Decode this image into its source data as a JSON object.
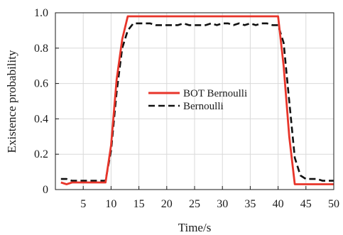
{
  "chart_data": {
    "type": "line",
    "title": "",
    "xlabel": "Time/s",
    "ylabel": "Existence probability",
    "xlim": [
      0,
      50
    ],
    "ylim": [
      0,
      1.0
    ],
    "x_ticks": [
      5,
      10,
      15,
      20,
      25,
      30,
      35,
      40,
      45,
      50
    ],
    "x_tick_labels": [
      "5",
      "10",
      "15",
      "20",
      "25",
      "30",
      "35",
      "40",
      "45",
      "50"
    ],
    "y_ticks": [
      0,
      0.2,
      0.4,
      0.6,
      0.8,
      1.0
    ],
    "y_tick_labels": [
      "0",
      "0.2",
      "0.4",
      "0.6",
      "0.8",
      "1.0"
    ],
    "grid": true,
    "legend_position": "center",
    "x": [
      1,
      2,
      3,
      4,
      5,
      6,
      7,
      8,
      9,
      10,
      11,
      12,
      13,
      14,
      15,
      16,
      17,
      18,
      19,
      20,
      21,
      22,
      23,
      24,
      25,
      26,
      27,
      28,
      29,
      30,
      31,
      32,
      33,
      34,
      35,
      36,
      37,
      38,
      39,
      40,
      41,
      42,
      43,
      44,
      45,
      46,
      47,
      48,
      49,
      50
    ],
    "series": [
      {
        "name": "BOT Bernoulli",
        "color": "#e8352a",
        "style": "solid",
        "values": [
          0.04,
          0.03,
          0.04,
          0.04,
          0.04,
          0.04,
          0.04,
          0.04,
          0.04,
          0.25,
          0.62,
          0.85,
          0.98,
          0.98,
          0.98,
          0.98,
          0.98,
          0.98,
          0.98,
          0.98,
          0.98,
          0.98,
          0.98,
          0.98,
          0.98,
          0.98,
          0.98,
          0.98,
          0.98,
          0.98,
          0.98,
          0.98,
          0.98,
          0.98,
          0.98,
          0.98,
          0.98,
          0.98,
          0.98,
          0.98,
          0.7,
          0.3,
          0.03,
          0.03,
          0.03,
          0.03,
          0.03,
          0.03,
          0.03,
          0.03
        ]
      },
      {
        "name": "Bernoulli",
        "color": "#111111",
        "style": "dashed",
        "values": [
          0.06,
          0.06,
          0.05,
          0.05,
          0.05,
          0.05,
          0.05,
          0.05,
          0.05,
          0.22,
          0.55,
          0.8,
          0.9,
          0.94,
          0.94,
          0.94,
          0.94,
          0.93,
          0.93,
          0.93,
          0.93,
          0.93,
          0.94,
          0.93,
          0.93,
          0.93,
          0.93,
          0.94,
          0.93,
          0.94,
          0.94,
          0.93,
          0.94,
          0.93,
          0.94,
          0.93,
          0.94,
          0.94,
          0.93,
          0.93,
          0.83,
          0.5,
          0.18,
          0.08,
          0.06,
          0.06,
          0.06,
          0.05,
          0.05,
          0.05
        ]
      }
    ]
  }
}
